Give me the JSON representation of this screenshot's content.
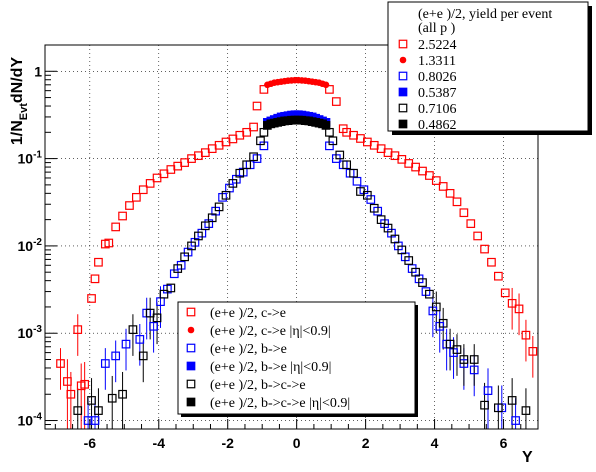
{
  "chart_data": {
    "type": "scatter",
    "title": "",
    "xlabel": "Y",
    "ylabel_main": "1/N",
    "ylabel_sub": "Evt",
    "ylabel_tail": "dN/dY",
    "xlim": [
      -7.3,
      7.0
    ],
    "ylim": [
      8e-05,
      2.0
    ],
    "yscale": "log",
    "grid": true,
    "x_ticks": [
      -6,
      -4,
      -2,
      0,
      2,
      4,
      6
    ],
    "x_tick_labels": [
      "-6",
      "-4",
      "-2",
      "0",
      "2",
      "4",
      "6"
    ],
    "y_ticks": [
      0.0001,
      0.001,
      0.01,
      0.1,
      1
    ],
    "y_tick_bases": [
      "10",
      "10",
      "10",
      "10",
      "1"
    ],
    "y_tick_exps": [
      "-4",
      "-3",
      "-2",
      "-1",
      ""
    ],
    "legend_top": {
      "placement": "top-right",
      "header_line1": "(e+e )/2, yield per event",
      "header_line2": "(all p )",
      "entries": [
        {
          "label": "2.5224",
          "color": "#ff0000",
          "marker": "open-square"
        },
        {
          "label": "1.3311",
          "color": "#ff0000",
          "marker": "filled-circle"
        },
        {
          "label": "0.8026",
          "color": "#0000ff",
          "marker": "open-square"
        },
        {
          "label": "0.5387",
          "color": "#0000ff",
          "marker": "filled-square"
        },
        {
          "label": "0.7106",
          "color": "#000000",
          "marker": "open-square"
        },
        {
          "label": "0.4862",
          "color": "#000000",
          "marker": "filled-square"
        }
      ]
    },
    "legend_bottom": {
      "placement": "bottom-center",
      "entries": [
        {
          "label": "(e+e )/2, c->e",
          "color": "#ff0000",
          "marker": "open-square"
        },
        {
          "label": "(e+e )/2, c->e |η|<0.9|",
          "color": "#ff0000",
          "marker": "filled-circle"
        },
        {
          "label": "(e+e )/2, b->e",
          "color": "#0000ff",
          "marker": "open-square"
        },
        {
          "label": "(e+e )/2, b->e |η|<0.9|",
          "color": "#0000ff",
          "marker": "filled-square"
        },
        {
          "label": "(e+e )/2, b->c->e",
          "color": "#000000",
          "marker": "open-square"
        },
        {
          "label": "(e+e )/2, b->c->e |η|<0.9|",
          "color": "#000000",
          "marker": "filled-square"
        }
      ]
    },
    "series": [
      {
        "name": "(e+e )/2, c->e",
        "color": "#ff0000",
        "marker": "open-square",
        "points": [
          [
            -6.85,
            0.00045
          ],
          [
            -6.65,
            0.00028
          ],
          [
            -6.55,
            0.0002
          ],
          [
            -6.35,
            0.0011
          ],
          [
            -6.25,
            0.00025
          ],
          [
            -6.15,
            0.00026
          ],
          [
            -5.95,
            0.0025
          ],
          [
            -5.85,
            0.0042
          ],
          [
            -5.75,
            0.0065
          ],
          [
            -5.55,
            0.0105
          ],
          [
            -5.45,
            0.0108
          ],
          [
            -5.25,
            0.0165
          ],
          [
            -5.05,
            0.022
          ],
          [
            -4.85,
            0.029
          ],
          [
            -4.65,
            0.036
          ],
          [
            -4.45,
            0.044
          ],
          [
            -4.25,
            0.052
          ],
          [
            -4.05,
            0.06
          ],
          [
            -3.85,
            0.067
          ],
          [
            -3.65,
            0.075
          ],
          [
            -3.45,
            0.082
          ],
          [
            -3.25,
            0.09
          ],
          [
            -3.05,
            0.1
          ],
          [
            -2.85,
            0.108
          ],
          [
            -2.65,
            0.117
          ],
          [
            -2.45,
            0.13
          ],
          [
            -2.25,
            0.142
          ],
          [
            -2.05,
            0.155
          ],
          [
            -1.85,
            0.168
          ],
          [
            -1.65,
            0.185
          ],
          [
            -1.45,
            0.2
          ],
          [
            -1.25,
            0.23
          ],
          [
            -1.15,
            0.4
          ],
          [
            -0.95,
            0.62
          ],
          [
            0.95,
            0.62
          ],
          [
            1.15,
            0.45
          ],
          [
            1.35,
            0.22
          ],
          [
            1.45,
            0.2
          ],
          [
            1.65,
            0.185
          ],
          [
            1.85,
            0.17
          ],
          [
            2.05,
            0.155
          ],
          [
            2.25,
            0.142
          ],
          [
            2.45,
            0.13
          ],
          [
            2.65,
            0.117
          ],
          [
            2.85,
            0.108
          ],
          [
            3.05,
            0.098
          ],
          [
            3.25,
            0.088
          ],
          [
            3.45,
            0.08
          ],
          [
            3.65,
            0.072
          ],
          [
            3.85,
            0.064
          ],
          [
            4.05,
            0.056
          ],
          [
            4.25,
            0.048
          ],
          [
            4.45,
            0.04
          ],
          [
            4.65,
            0.032
          ],
          [
            4.85,
            0.024
          ],
          [
            5.05,
            0.018
          ],
          [
            5.25,
            0.013
          ],
          [
            5.45,
            0.0092
          ],
          [
            5.65,
            0.0065
          ],
          [
            5.85,
            0.0045
          ],
          [
            6.05,
            0.0029
          ],
          [
            6.25,
            0.0022
          ],
          [
            6.45,
            0.0019
          ],
          [
            6.65,
            0.00095
          ],
          [
            6.85,
            0.00062
          ]
        ]
      },
      {
        "name": "(e+e )/2, c->e |η|<0.9|",
        "color": "#ff0000",
        "marker": "filled-circle",
        "points": [
          [
            -0.85,
            0.7
          ],
          [
            -0.75,
            0.72
          ],
          [
            -0.65,
            0.74
          ],
          [
            -0.55,
            0.75
          ],
          [
            -0.45,
            0.76
          ],
          [
            -0.35,
            0.77
          ],
          [
            -0.25,
            0.78
          ],
          [
            -0.15,
            0.785
          ],
          [
            -0.05,
            0.79
          ],
          [
            0.05,
            0.79
          ],
          [
            0.15,
            0.785
          ],
          [
            0.25,
            0.78
          ],
          [
            0.35,
            0.77
          ],
          [
            0.45,
            0.76
          ],
          [
            0.55,
            0.75
          ],
          [
            0.65,
            0.74
          ],
          [
            0.75,
            0.72
          ],
          [
            0.85,
            0.7
          ]
        ]
      },
      {
        "name": "(e+e )/2, b->e",
        "color": "#0000ff",
        "marker": "open-square",
        "points": [
          [
            -6.05,
            0.0001
          ],
          [
            -5.85,
            0.0001
          ],
          [
            -5.55,
            0.00045
          ],
          [
            -5.25,
            0.00055
          ],
          [
            -4.95,
            0.00075
          ],
          [
            -4.55,
            0.00085
          ],
          [
            -4.35,
            0.0017
          ],
          [
            -4.15,
            0.0012
          ],
          [
            -3.95,
            0.0023
          ],
          [
            -3.75,
            0.0032
          ],
          [
            -3.55,
            0.0048
          ],
          [
            -3.35,
            0.006
          ],
          [
            -3.15,
            0.0085
          ],
          [
            -2.95,
            0.011
          ],
          [
            -2.75,
            0.014
          ],
          [
            -2.55,
            0.018
          ],
          [
            -2.35,
            0.025
          ],
          [
            -2.15,
            0.036
          ],
          [
            -1.95,
            0.046
          ],
          [
            -1.75,
            0.058
          ],
          [
            -1.55,
            0.07
          ],
          [
            -1.35,
            0.085
          ],
          [
            -1.15,
            0.1
          ],
          [
            -0.95,
            0.14
          ],
          [
            0.95,
            0.14
          ],
          [
            1.15,
            0.1
          ],
          [
            1.35,
            0.085
          ],
          [
            1.55,
            0.068
          ],
          [
            1.75,
            0.055
          ],
          [
            1.95,
            0.044
          ],
          [
            2.15,
            0.034
          ],
          [
            2.35,
            0.025
          ],
          [
            2.55,
            0.018
          ],
          [
            2.75,
            0.014
          ],
          [
            2.95,
            0.01
          ],
          [
            3.15,
            0.0075
          ],
          [
            3.35,
            0.0055
          ],
          [
            3.55,
            0.0042
          ],
          [
            3.75,
            0.003
          ],
          [
            3.95,
            0.0018
          ],
          [
            4.15,
            0.0012
          ],
          [
            4.35,
            0.00075
          ],
          [
            4.55,
            0.0006
          ],
          [
            4.85,
            0.00045
          ],
          [
            5.15,
            0.00038
          ],
          [
            5.55,
            0.00022
          ],
          [
            5.95,
            0.00014
          ],
          [
            6.35,
            0.0001
          ]
        ]
      },
      {
        "name": "(e+e )/2, b->e |η|<0.9|",
        "color": "#0000ff",
        "marker": "filled-square",
        "points": [
          [
            -0.85,
            0.26
          ],
          [
            -0.75,
            0.27
          ],
          [
            -0.65,
            0.28
          ],
          [
            -0.55,
            0.29
          ],
          [
            -0.45,
            0.3
          ],
          [
            -0.35,
            0.305
          ],
          [
            -0.25,
            0.31
          ],
          [
            -0.15,
            0.315
          ],
          [
            -0.05,
            0.318
          ],
          [
            0.05,
            0.318
          ],
          [
            0.15,
            0.315
          ],
          [
            0.25,
            0.31
          ],
          [
            0.35,
            0.305
          ],
          [
            0.45,
            0.3
          ],
          [
            0.55,
            0.29
          ],
          [
            0.65,
            0.28
          ],
          [
            0.75,
            0.27
          ],
          [
            0.85,
            0.26
          ]
        ]
      },
      {
        "name": "(e+e )/2, b->c->e",
        "color": "#000000",
        "marker": "open-square",
        "points": [
          [
            -6.35,
            0.00013
          ],
          [
            -5.95,
            0.00017
          ],
          [
            -5.75,
            0.00013
          ],
          [
            -5.35,
            0.00018
          ],
          [
            -5.05,
            0.0002
          ],
          [
            -4.75,
            0.0011
          ],
          [
            -4.45,
            0.00055
          ],
          [
            -4.25,
            0.0017
          ],
          [
            -4.05,
            0.0015
          ],
          [
            -3.85,
            0.0028
          ],
          [
            -3.65,
            0.0033
          ],
          [
            -3.45,
            0.0055
          ],
          [
            -3.25,
            0.0075
          ],
          [
            -3.05,
            0.01
          ],
          [
            -2.85,
            0.013
          ],
          [
            -2.65,
            0.017
          ],
          [
            -2.45,
            0.021
          ],
          [
            -2.25,
            0.028
          ],
          [
            -2.05,
            0.038
          ],
          [
            -1.85,
            0.052
          ],
          [
            -1.65,
            0.068
          ],
          [
            -1.45,
            0.085
          ],
          [
            -1.25,
            0.105
          ],
          [
            -1.05,
            0.16
          ],
          [
            -0.95,
            0.2
          ],
          [
            0.95,
            0.2
          ],
          [
            1.05,
            0.16
          ],
          [
            1.25,
            0.11
          ],
          [
            1.45,
            0.085
          ],
          [
            1.65,
            0.068
          ],
          [
            1.85,
            0.042
          ],
          [
            2.05,
            0.038
          ],
          [
            2.25,
            0.027
          ],
          [
            2.45,
            0.02
          ],
          [
            2.65,
            0.016
          ],
          [
            2.85,
            0.012
          ],
          [
            3.05,
            0.009
          ],
          [
            3.25,
            0.0068
          ],
          [
            3.45,
            0.005
          ],
          [
            3.65,
            0.0038
          ],
          [
            3.85,
            0.0028
          ],
          [
            4.05,
            0.002
          ],
          [
            4.25,
            0.0013
          ],
          [
            4.45,
            0.00075
          ],
          [
            4.65,
            0.00065
          ],
          [
            4.85,
            0.0005
          ],
          [
            5.15,
            0.0005
          ],
          [
            5.45,
            0.00015
          ],
          [
            5.85,
            0.00014
          ],
          [
            6.25,
            0.00017
          ],
          [
            6.65,
            0.00013
          ]
        ]
      },
      {
        "name": "(e+e )/2, b->c->e |η|<0.9|",
        "color": "#000000",
        "marker": "filled-square",
        "points": [
          [
            -0.85,
            0.24
          ],
          [
            -0.75,
            0.25
          ],
          [
            -0.65,
            0.255
          ],
          [
            -0.55,
            0.26
          ],
          [
            -0.45,
            0.265
          ],
          [
            -0.35,
            0.27
          ],
          [
            -0.25,
            0.272
          ],
          [
            -0.15,
            0.275
          ],
          [
            -0.05,
            0.276
          ],
          [
            0.05,
            0.276
          ],
          [
            0.15,
            0.275
          ],
          [
            0.25,
            0.272
          ],
          [
            0.35,
            0.27
          ],
          [
            0.45,
            0.265
          ],
          [
            0.55,
            0.26
          ],
          [
            0.65,
            0.255
          ],
          [
            0.75,
            0.25
          ],
          [
            0.85,
            0.24
          ]
        ]
      }
    ]
  }
}
